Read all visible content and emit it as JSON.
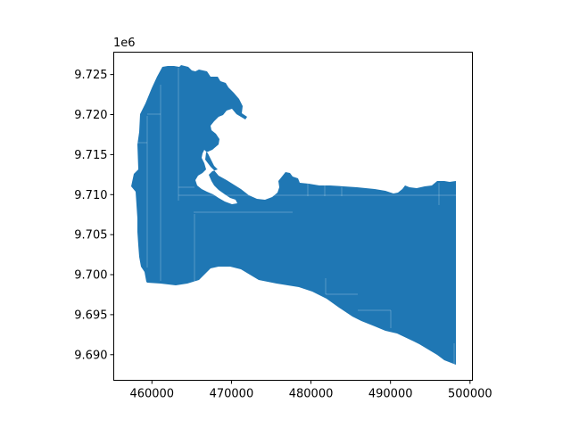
{
  "map": {
    "offset_label": "1e6",
    "fill_color": "#1f77b4",
    "x_ticks": [
      "460000",
      "470000",
      "480000",
      "490000",
      "500000"
    ],
    "y_ticks": [
      "9.725",
      "9.720",
      "9.715",
      "9.710",
      "9.705",
      "9.700",
      "9.695",
      "9.690"
    ]
  },
  "chart_data": {
    "type": "map",
    "title": "",
    "xlabel": "",
    "ylabel": "",
    "x_offset_note": "",
    "y_scale_factor": "1e6",
    "xlim": [
      455200,
      500300
    ],
    "ylim": [
      9686800,
      9727800
    ],
    "x_tick_values": [
      460000,
      470000,
      480000,
      490000,
      500000
    ],
    "y_tick_values": [
      9725000,
      9720000,
      9715000,
      9710000,
      9705000,
      9700000,
      9695000,
      9690000
    ],
    "grid": false,
    "legend": "none"
  }
}
